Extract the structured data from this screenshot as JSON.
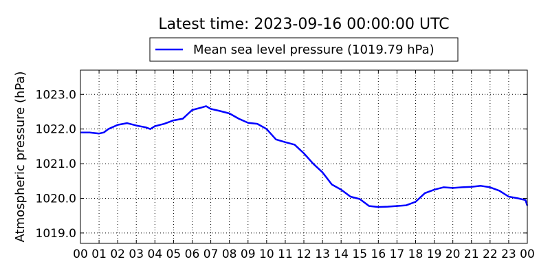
{
  "chart_data": {
    "type": "line",
    "title": "Latest time: 2023-09-16 00:00:00 UTC",
    "xlabel": "",
    "ylabel": "Atmospheric pressure (hPa)",
    "xlim": [
      0,
      24
    ],
    "ylim": [
      1018.7,
      1023.7
    ],
    "grid": true,
    "legend_position": "top-center",
    "x_ticks": [
      0,
      1,
      2,
      3,
      4,
      5,
      6,
      7,
      8,
      9,
      10,
      11,
      12,
      13,
      14,
      15,
      16,
      17,
      18,
      19,
      20,
      21,
      22,
      23,
      24
    ],
    "x_tick_labels": [
      "00",
      "01",
      "02",
      "03",
      "04",
      "05",
      "06",
      "07",
      "08",
      "09",
      "10",
      "11",
      "12",
      "13",
      "14",
      "15",
      "16",
      "17",
      "18",
      "19",
      "20",
      "21",
      "22",
      "23",
      "00"
    ],
    "y_ticks": [
      1019.0,
      1020.0,
      1021.0,
      1022.0,
      1023.0
    ],
    "y_tick_labels": [
      "1019.0",
      "1020.0",
      "1021.0",
      "1022.0",
      "1023.0"
    ],
    "series": [
      {
        "name": "Mean sea level pressure (1019.79 hPa)",
        "color": "#0000ff",
        "x": [
          0,
          0.5,
          1.0,
          1.25,
          1.5,
          2.0,
          2.5,
          3.0,
          3.5,
          3.75,
          4.0,
          4.5,
          5.0,
          5.5,
          6.0,
          6.5,
          6.75,
          7.0,
          7.5,
          8.0,
          8.5,
          9.0,
          9.5,
          10.0,
          10.5,
          11.0,
          11.5,
          12.0,
          12.5,
          13.0,
          13.5,
          14.0,
          14.5,
          15.0,
          15.5,
          16.0,
          16.5,
          17.0,
          17.5,
          18.0,
          18.5,
          19.0,
          19.5,
          20.0,
          20.5,
          21.0,
          21.5,
          22.0,
          22.5,
          23.0,
          23.5,
          23.9,
          24.0
        ],
        "y": [
          1021.9,
          1021.9,
          1021.87,
          1021.9,
          1022.0,
          1022.12,
          1022.17,
          1022.1,
          1022.05,
          1022.0,
          1022.08,
          1022.15,
          1022.25,
          1022.3,
          1022.55,
          1022.62,
          1022.66,
          1022.58,
          1022.52,
          1022.45,
          1022.3,
          1022.18,
          1022.15,
          1022.0,
          1021.7,
          1021.62,
          1021.55,
          1021.3,
          1021.0,
          1020.75,
          1020.4,
          1020.25,
          1020.05,
          1019.98,
          1019.78,
          1019.75,
          1019.76,
          1019.78,
          1019.8,
          1019.9,
          1020.15,
          1020.25,
          1020.32,
          1020.3,
          1020.32,
          1020.33,
          1020.36,
          1020.32,
          1020.22,
          1020.05,
          1020.0,
          1019.95,
          1019.79
        ]
      }
    ]
  }
}
